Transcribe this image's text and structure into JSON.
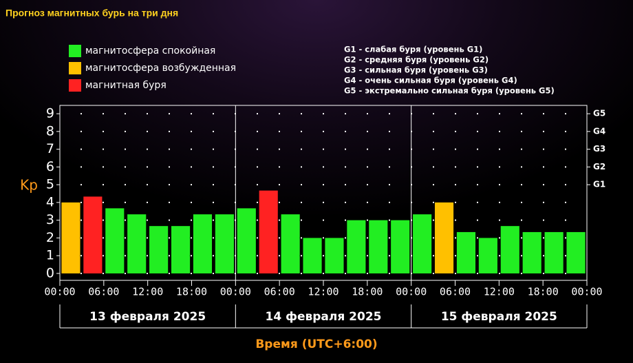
{
  "chart_data": {
    "type": "bar",
    "title": "Прогноз магнитных бурь на три дня",
    "y_label": "Kp",
    "x_label": "Время (UTC+6:00)",
    "days": [
      "13 февраля 2025",
      "14 февраля 2025",
      "15 февраля 2025"
    ],
    "storm_levels": [
      "G1 - слабая буря (уровень G1)",
      "G2 - средняя буря (уровень G2)",
      "G3 - сильная буря (уровень G3)",
      "G4 - очень сильная буря (уровень G4)",
      "G5 - экстремально сильная буря (уровень G5)"
    ],
    "x": [
      1.5,
      4.5,
      7.5,
      10.5,
      13.5,
      16.5,
      19.5,
      22.5,
      25.5,
      28.5,
      31.5,
      34.5,
      37.5,
      40.5,
      43.5,
      46.5,
      49.5,
      52.5,
      55.5,
      58.5,
      61.5,
      64.5,
      67.5,
      70.5
    ],
    "series": [
      {
        "name": "магнитосфера спокойная",
        "color": "#22ee22",
        "values": [
          null,
          null,
          3.67,
          3.33,
          2.67,
          2.67,
          3.33,
          3.33,
          3.67,
          null,
          3.33,
          2.0,
          2.0,
          3.0,
          3.0,
          3.0,
          3.33,
          null,
          2.33,
          2.0,
          2.67,
          2.33,
          2.33,
          2.33
        ]
      },
      {
        "name": "магнитосфера возбужденная",
        "color": "#ffc000",
        "values": [
          4.0,
          null,
          null,
          null,
          null,
          null,
          null,
          null,
          null,
          null,
          null,
          null,
          null,
          null,
          null,
          null,
          null,
          4.0,
          null,
          null,
          null,
          null,
          null,
          null
        ]
      },
      {
        "name": "магнитная буря",
        "color": "#ff2222",
        "values": [
          null,
          4.33,
          null,
          null,
          null,
          null,
          null,
          null,
          null,
          4.67,
          null,
          null,
          null,
          null,
          null,
          null,
          null,
          null,
          null,
          null,
          null,
          null,
          null,
          null
        ]
      }
    ],
    "xlim": [
      0,
      72
    ],
    "xticks": [
      {
        "value": 0,
        "label": "00:00"
      },
      {
        "value": 6,
        "label": "06:00"
      },
      {
        "value": 12,
        "label": "12:00"
      },
      {
        "value": 18,
        "label": "18:00"
      },
      {
        "value": 24,
        "label": "00:00"
      },
      {
        "value": 30,
        "label": "06:00"
      },
      {
        "value": 36,
        "label": "12:00"
      },
      {
        "value": 42,
        "label": "18:00"
      },
      {
        "value": 48,
        "label": "00:00"
      },
      {
        "value": 54,
        "label": "06:00"
      },
      {
        "value": 60,
        "label": "12:00"
      },
      {
        "value": 66,
        "label": "18:00"
      },
      {
        "value": 72,
        "label": "00:00"
      }
    ],
    "ylim": [
      -0.39,
      9.47
    ],
    "yticks": [
      0,
      1,
      2,
      3,
      4,
      5,
      6,
      7,
      8,
      9
    ],
    "y2lim": [
      -0.39,
      9.47
    ],
    "y2ticks": [
      {
        "value": 5,
        "label": "G1"
      },
      {
        "value": 6,
        "label": "G2"
      },
      {
        "value": 7,
        "label": "G3"
      },
      {
        "value": 8,
        "label": "G4"
      },
      {
        "value": 9,
        "label": "G5"
      }
    ],
    "grid": true
  }
}
